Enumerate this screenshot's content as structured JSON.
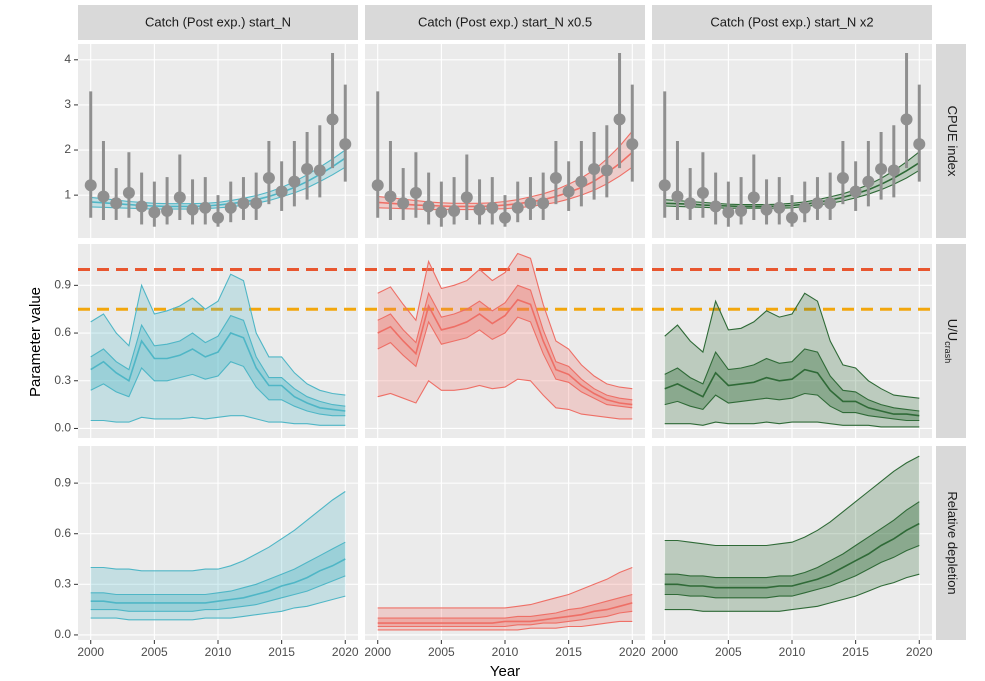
{
  "chart_data": {
    "type": "facet-band",
    "xlabel": "Year",
    "ylabel": "Parameter value",
    "x": [
      2000,
      2001,
      2002,
      2003,
      2004,
      2005,
      2006,
      2007,
      2008,
      2009,
      2010,
      2011,
      2012,
      2013,
      2014,
      2015,
      2016,
      2017,
      2018,
      2019,
      2020
    ],
    "xlim": [
      1999,
      2021
    ],
    "xticks": [
      2000,
      2005,
      2010,
      2015,
      2020
    ],
    "grid": true,
    "columns": [
      {
        "title": "Catch (Post exp.) start_N",
        "color": "#4fb6c6"
      },
      {
        "title": "Catch (Post exp.) start_N x0.5",
        "color": "#ee6f66"
      },
      {
        "title": "Catch (Post exp.) start_N x2",
        "color": "#2f6a37"
      }
    ],
    "rows": [
      {
        "label": "CPUE index",
        "ylim": [
          0.05,
          4.35
        ],
        "yticks": [
          1,
          2,
          3,
          4
        ],
        "observed": {
          "color": "#8f8f8f",
          "values": [
            1.22,
            0.97,
            0.82,
            1.05,
            0.75,
            0.62,
            0.65,
            0.95,
            0.68,
            0.72,
            0.5,
            0.72,
            0.82,
            0.82,
            1.38,
            1.08,
            1.3,
            1.58,
            1.55,
            2.68,
            2.13
          ],
          "lower": [
            0.5,
            0.45,
            0.45,
            0.5,
            0.35,
            0.3,
            0.35,
            0.45,
            0.35,
            0.35,
            0.3,
            0.4,
            0.45,
            0.45,
            0.8,
            0.65,
            0.75,
            0.9,
            0.95,
            1.6,
            1.3
          ],
          "upper": [
            3.3,
            2.2,
            1.6,
            1.95,
            1.5,
            1.3,
            1.4,
            1.9,
            1.35,
            1.4,
            1.0,
            1.3,
            1.4,
            1.5,
            2.2,
            1.75,
            2.2,
            2.4,
            2.55,
            4.15,
            3.45
          ]
        }
      },
      {
        "label": "U/U",
        "label_subscript": "crash",
        "ylim": [
          -0.06,
          1.16
        ],
        "yticks": [
          {
            "value": 0,
            "label": "0.0"
          },
          0.3,
          0.6,
          0.9
        ],
        "reference_lines": [
          {
            "value": 1,
            "color": "#e8562f"
          },
          {
            "value": 0.75,
            "color": "#f2a60c"
          }
        ]
      },
      {
        "label": "Relative depletion",
        "ylim": [
          -0.03,
          1.12
        ],
        "yticks": [
          {
            "value": 0,
            "label": "0.0"
          },
          0.3,
          0.6,
          0.9
        ]
      }
    ],
    "panels": [
      [
        {
          "lower": [
            0.74,
            0.73,
            0.72,
            0.71,
            0.7,
            0.69,
            0.69,
            0.69,
            0.69,
            0.7,
            0.72,
            0.74,
            0.78,
            0.82,
            0.88,
            0.96,
            1.05,
            1.16,
            1.3,
            1.45,
            1.62
          ],
          "median": [
            0.85,
            0.83,
            0.81,
            0.79,
            0.77,
            0.76,
            0.75,
            0.75,
            0.75,
            0.76,
            0.78,
            0.81,
            0.85,
            0.9,
            0.97,
            1.06,
            1.17,
            1.3,
            1.46,
            1.63,
            1.82
          ],
          "upper": [
            0.95,
            0.92,
            0.89,
            0.86,
            0.84,
            0.82,
            0.81,
            0.81,
            0.81,
            0.82,
            0.84,
            0.88,
            0.93,
            0.99,
            1.07,
            1.17,
            1.3,
            1.45,
            1.62,
            1.8,
            2.0
          ]
        },
        {
          "lower": [
            0.72,
            0.71,
            0.7,
            0.69,
            0.68,
            0.68,
            0.68,
            0.68,
            0.68,
            0.69,
            0.7,
            0.72,
            0.75,
            0.79,
            0.84,
            0.91,
            1.0,
            1.11,
            1.25,
            1.42,
            1.62
          ],
          "median": [
            0.84,
            0.82,
            0.8,
            0.78,
            0.77,
            0.76,
            0.75,
            0.75,
            0.75,
            0.76,
            0.78,
            0.81,
            0.85,
            0.9,
            0.97,
            1.06,
            1.17,
            1.31,
            1.49,
            1.7,
            1.95
          ],
          "upper": [
            0.97,
            0.94,
            0.91,
            0.88,
            0.85,
            0.83,
            0.82,
            0.82,
            0.82,
            0.83,
            0.86,
            0.9,
            0.96,
            1.03,
            1.12,
            1.24,
            1.38,
            1.56,
            1.8,
            2.08,
            2.42
          ]
        },
        {
          "lower": [
            0.76,
            0.75,
            0.74,
            0.73,
            0.72,
            0.71,
            0.71,
            0.71,
            0.71,
            0.71,
            0.72,
            0.75,
            0.78,
            0.82,
            0.87,
            0.94,
            1.02,
            1.12,
            1.24,
            1.38,
            1.55
          ],
          "median": [
            0.82,
            0.81,
            0.8,
            0.78,
            0.77,
            0.76,
            0.75,
            0.75,
            0.75,
            0.76,
            0.77,
            0.8,
            0.84,
            0.89,
            0.95,
            1.03,
            1.12,
            1.24,
            1.38,
            1.54,
            1.72
          ],
          "upper": [
            0.9,
            0.88,
            0.86,
            0.84,
            0.82,
            0.8,
            0.79,
            0.79,
            0.79,
            0.8,
            0.82,
            0.85,
            0.9,
            0.96,
            1.03,
            1.12,
            1.23,
            1.37,
            1.54,
            1.74,
            1.96
          ]
        }
      ],
      [
        {
          "lower": [
            0.05,
            0.05,
            0.04,
            0.04,
            0.07,
            0.06,
            0.06,
            0.06,
            0.07,
            0.06,
            0.07,
            0.08,
            0.08,
            0.06,
            0.04,
            0.04,
            0.03,
            0.03,
            0.02,
            0.02,
            0.02
          ],
          "lower_inner": [
            0.24,
            0.28,
            0.23,
            0.2,
            0.38,
            0.3,
            0.3,
            0.32,
            0.34,
            0.31,
            0.33,
            0.42,
            0.39,
            0.26,
            0.18,
            0.18,
            0.14,
            0.11,
            0.09,
            0.08,
            0.08
          ],
          "median": [
            0.37,
            0.42,
            0.35,
            0.3,
            0.55,
            0.44,
            0.44,
            0.46,
            0.5,
            0.45,
            0.48,
            0.6,
            0.57,
            0.38,
            0.27,
            0.27,
            0.2,
            0.16,
            0.13,
            0.12,
            0.11
          ],
          "upper_inner": [
            0.45,
            0.5,
            0.42,
            0.37,
            0.65,
            0.52,
            0.53,
            0.55,
            0.6,
            0.54,
            0.58,
            0.71,
            0.68,
            0.45,
            0.32,
            0.32,
            0.25,
            0.2,
            0.17,
            0.15,
            0.14
          ],
          "upper": [
            0.67,
            0.72,
            0.6,
            0.52,
            0.9,
            0.72,
            0.74,
            0.77,
            0.82,
            0.75,
            0.8,
            0.97,
            0.93,
            0.6,
            0.45,
            0.45,
            0.35,
            0.28,
            0.24,
            0.22,
            0.21
          ]
        },
        {
          "lower": [
            0.2,
            0.22,
            0.19,
            0.16,
            0.3,
            0.24,
            0.24,
            0.25,
            0.27,
            0.25,
            0.26,
            0.31,
            0.3,
            0.21,
            0.13,
            0.12,
            0.09,
            0.08,
            0.07,
            0.06,
            0.06
          ],
          "lower_inner": [
            0.5,
            0.54,
            0.46,
            0.39,
            0.67,
            0.53,
            0.55,
            0.57,
            0.62,
            0.56,
            0.6,
            0.7,
            0.67,
            0.47,
            0.31,
            0.29,
            0.23,
            0.19,
            0.15,
            0.14,
            0.13
          ],
          "median": [
            0.6,
            0.64,
            0.55,
            0.47,
            0.77,
            0.62,
            0.64,
            0.67,
            0.72,
            0.66,
            0.71,
            0.81,
            0.78,
            0.55,
            0.37,
            0.34,
            0.27,
            0.22,
            0.18,
            0.16,
            0.15
          ],
          "upper_inner": [
            0.68,
            0.72,
            0.62,
            0.54,
            0.85,
            0.7,
            0.72,
            0.75,
            0.8,
            0.74,
            0.79,
            0.9,
            0.87,
            0.62,
            0.42,
            0.39,
            0.31,
            0.25,
            0.21,
            0.19,
            0.18
          ],
          "upper": [
            0.85,
            0.89,
            0.78,
            0.68,
            1.05,
            0.88,
            0.9,
            0.93,
            1.0,
            0.93,
            0.98,
            1.1,
            1.07,
            0.78,
            0.55,
            0.5,
            0.4,
            0.33,
            0.28,
            0.26,
            0.25
          ]
        },
        {
          "lower": [
            0.03,
            0.03,
            0.03,
            0.02,
            0.04,
            0.03,
            0.03,
            0.03,
            0.04,
            0.03,
            0.04,
            0.04,
            0.04,
            0.03,
            0.02,
            0.02,
            0.02,
            0.01,
            0.01,
            0.01,
            0.01
          ],
          "lower_inner": [
            0.15,
            0.17,
            0.14,
            0.12,
            0.21,
            0.16,
            0.17,
            0.18,
            0.19,
            0.18,
            0.19,
            0.22,
            0.21,
            0.14,
            0.1,
            0.1,
            0.08,
            0.07,
            0.06,
            0.05,
            0.05
          ],
          "median": [
            0.25,
            0.28,
            0.24,
            0.2,
            0.35,
            0.27,
            0.28,
            0.29,
            0.32,
            0.3,
            0.31,
            0.37,
            0.35,
            0.24,
            0.17,
            0.17,
            0.13,
            0.11,
            0.09,
            0.09,
            0.08
          ],
          "upper_inner": [
            0.34,
            0.38,
            0.32,
            0.28,
            0.48,
            0.37,
            0.38,
            0.4,
            0.44,
            0.41,
            0.42,
            0.5,
            0.48,
            0.33,
            0.24,
            0.23,
            0.18,
            0.15,
            0.13,
            0.12,
            0.11
          ],
          "upper": [
            0.58,
            0.65,
            0.55,
            0.48,
            0.8,
            0.62,
            0.63,
            0.67,
            0.74,
            0.7,
            0.72,
            0.85,
            0.8,
            0.55,
            0.4,
            0.38,
            0.3,
            0.25,
            0.21,
            0.2,
            0.19
          ]
        }
      ],
      [
        {
          "lower": [
            0.1,
            0.1,
            0.1,
            0.09,
            0.09,
            0.09,
            0.09,
            0.09,
            0.09,
            0.1,
            0.1,
            0.1,
            0.11,
            0.12,
            0.13,
            0.14,
            0.16,
            0.17,
            0.19,
            0.21,
            0.23
          ],
          "lower_inner": [
            0.15,
            0.15,
            0.15,
            0.14,
            0.14,
            0.14,
            0.14,
            0.14,
            0.14,
            0.15,
            0.15,
            0.16,
            0.17,
            0.18,
            0.2,
            0.22,
            0.24,
            0.26,
            0.29,
            0.32,
            0.35
          ],
          "median": [
            0.2,
            0.2,
            0.19,
            0.19,
            0.19,
            0.19,
            0.19,
            0.19,
            0.19,
            0.19,
            0.2,
            0.21,
            0.22,
            0.24,
            0.26,
            0.29,
            0.31,
            0.34,
            0.38,
            0.41,
            0.45
          ],
          "upper_inner": [
            0.25,
            0.25,
            0.24,
            0.24,
            0.24,
            0.24,
            0.24,
            0.24,
            0.24,
            0.24,
            0.25,
            0.26,
            0.28,
            0.3,
            0.33,
            0.36,
            0.39,
            0.43,
            0.47,
            0.51,
            0.55
          ],
          "upper": [
            0.4,
            0.4,
            0.39,
            0.39,
            0.38,
            0.38,
            0.38,
            0.38,
            0.38,
            0.39,
            0.39,
            0.41,
            0.44,
            0.48,
            0.52,
            0.57,
            0.62,
            0.68,
            0.74,
            0.8,
            0.85
          ]
        },
        {
          "lower": [
            0.03,
            0.03,
            0.03,
            0.03,
            0.03,
            0.03,
            0.03,
            0.03,
            0.03,
            0.03,
            0.03,
            0.03,
            0.04,
            0.04,
            0.04,
            0.05,
            0.05,
            0.06,
            0.07,
            0.08,
            0.08
          ],
          "lower_inner": [
            0.05,
            0.05,
            0.05,
            0.05,
            0.05,
            0.05,
            0.05,
            0.05,
            0.05,
            0.05,
            0.05,
            0.06,
            0.06,
            0.07,
            0.07,
            0.08,
            0.09,
            0.1,
            0.11,
            0.13,
            0.14
          ],
          "median": [
            0.07,
            0.07,
            0.07,
            0.07,
            0.07,
            0.07,
            0.07,
            0.07,
            0.07,
            0.07,
            0.08,
            0.08,
            0.08,
            0.09,
            0.1,
            0.11,
            0.12,
            0.14,
            0.15,
            0.17,
            0.19
          ],
          "upper_inner": [
            0.1,
            0.1,
            0.1,
            0.1,
            0.1,
            0.1,
            0.1,
            0.1,
            0.1,
            0.1,
            0.1,
            0.11,
            0.11,
            0.12,
            0.13,
            0.15,
            0.16,
            0.18,
            0.2,
            0.22,
            0.24
          ],
          "upper": [
            0.16,
            0.16,
            0.16,
            0.16,
            0.16,
            0.16,
            0.16,
            0.16,
            0.16,
            0.16,
            0.16,
            0.17,
            0.18,
            0.2,
            0.22,
            0.24,
            0.27,
            0.3,
            0.33,
            0.37,
            0.4
          ]
        },
        {
          "lower": [
            0.15,
            0.15,
            0.15,
            0.14,
            0.14,
            0.14,
            0.14,
            0.14,
            0.14,
            0.14,
            0.15,
            0.16,
            0.17,
            0.19,
            0.21,
            0.23,
            0.26,
            0.29,
            0.31,
            0.34,
            0.36
          ],
          "lower_inner": [
            0.24,
            0.24,
            0.23,
            0.23,
            0.22,
            0.22,
            0.22,
            0.22,
            0.22,
            0.23,
            0.23,
            0.25,
            0.27,
            0.29,
            0.32,
            0.35,
            0.39,
            0.43,
            0.46,
            0.5,
            0.53
          ],
          "median": [
            0.3,
            0.3,
            0.29,
            0.29,
            0.28,
            0.28,
            0.28,
            0.28,
            0.28,
            0.29,
            0.29,
            0.31,
            0.33,
            0.36,
            0.4,
            0.44,
            0.48,
            0.53,
            0.57,
            0.62,
            0.66
          ],
          "upper_inner": [
            0.36,
            0.36,
            0.35,
            0.35,
            0.34,
            0.34,
            0.34,
            0.34,
            0.34,
            0.35,
            0.35,
            0.37,
            0.4,
            0.44,
            0.48,
            0.53,
            0.58,
            0.63,
            0.68,
            0.74,
            0.79
          ],
          "upper": [
            0.56,
            0.56,
            0.55,
            0.54,
            0.53,
            0.53,
            0.53,
            0.53,
            0.53,
            0.54,
            0.55,
            0.58,
            0.62,
            0.67,
            0.73,
            0.79,
            0.85,
            0.91,
            0.97,
            1.02,
            1.06
          ]
        }
      ]
    ]
  }
}
